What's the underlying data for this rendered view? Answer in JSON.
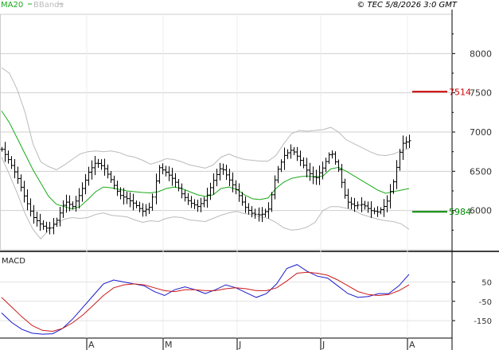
{
  "header": {
    "copyright": "© TEC 5/8/2026 3:0 GMT",
    "legend": [
      {
        "label": "MA20",
        "color": "#1aaa1a"
      },
      {
        "label": "BBands",
        "color": "#bbbbbb"
      }
    ]
  },
  "chart_data": [
    {
      "type": "ohlc",
      "title": "",
      "xlabel": "",
      "ylabel": "",
      "ylim": [
        5500,
        8500
      ],
      "y_ticks": [
        "8000",
        "7500",
        "7000",
        "6500",
        "6000"
      ],
      "x_ticks": [
        "A",
        "M",
        "J",
        "J",
        "A"
      ],
      "grid": true,
      "series": [
        {
          "name": "MA20",
          "color": "#1aaa1a"
        },
        {
          "name": "BBands",
          "color": "#bbbbbb"
        }
      ],
      "levels": [
        {
          "label": "7514",
          "value": 7514,
          "color": "#cc0000"
        },
        {
          "label": "5984",
          "value": 5984,
          "color": "#008800"
        }
      ],
      "price_path": [
        6780,
        6620,
        6420,
        6150,
        5920,
        5820,
        5760,
        5880,
        6120,
        6050,
        6220,
        6480,
        6620,
        6550,
        6380,
        6200,
        6150,
        6080,
        5990,
        6050,
        6550,
        6480,
        6380,
        6200,
        6100,
        6050,
        6150,
        6380,
        6560,
        6400,
        6250,
        6050,
        5960,
        5940,
        6020,
        6480,
        6700,
        6780,
        6650,
        6500,
        6400,
        6550,
        6760,
        6520,
        6120,
        6060,
        6080,
        6000,
        5980,
        6080,
        6380,
        6850,
        6890
      ],
      "ma20_path": [
        7270,
        7120,
        6920,
        6720,
        6520,
        6350,
        6180,
        6080,
        6050,
        6020,
        6050,
        6140,
        6240,
        6300,
        6290,
        6270,
        6250,
        6240,
        6230,
        6225,
        6240,
        6280,
        6300,
        6280,
        6240,
        6200,
        6180,
        6200,
        6280,
        6300,
        6270,
        6200,
        6150,
        6140,
        6160,
        6280,
        6360,
        6410,
        6430,
        6440,
        6430,
        6440,
        6530,
        6550,
        6500,
        6440,
        6380,
        6320,
        6260,
        6220,
        6240,
        6260,
        6280
      ],
      "bb_upper_path": [
        7820,
        7750,
        7540,
        7250,
        6850,
        6620,
        6560,
        6520,
        6580,
        6650,
        6720,
        6750,
        6760,
        6750,
        6760,
        6740,
        6700,
        6680,
        6640,
        6590,
        6620,
        6660,
        6650,
        6620,
        6580,
        6560,
        6540,
        6580,
        6680,
        6720,
        6680,
        6650,
        6640,
        6630,
        6630,
        6700,
        6850,
        6980,
        7020,
        7010,
        7020,
        7030,
        7060,
        7000,
        6900,
        6850,
        6800,
        6750,
        6710,
        6700,
        6720,
        6760,
        6790
      ],
      "bb_lower_path": [
        6680,
        6460,
        6220,
        5960,
        5760,
        5640,
        5750,
        5830,
        5890,
        5910,
        5900,
        5910,
        5950,
        5970,
        5940,
        5930,
        5920,
        5880,
        5850,
        5870,
        5860,
        5900,
        5920,
        5910,
        5880,
        5870,
        5860,
        5900,
        5940,
        5970,
        5990,
        5960,
        5950,
        5920,
        5900,
        5850,
        5780,
        5750,
        5760,
        5790,
        5850,
        6000,
        6050,
        6050,
        6030,
        6000,
        5950,
        5920,
        5890,
        5870,
        5860,
        5830,
        5760
      ]
    },
    {
      "type": "line",
      "title": "MACD",
      "xlabel": "",
      "ylabel": "",
      "ylim": [
        -240,
        200
      ],
      "y_ticks": [
        "50",
        "-50",
        "-150"
      ],
      "grid": true,
      "series": [
        {
          "name": "",
          "color": "#1a1acc",
          "values": [
            -110,
            -160,
            -195,
            -215,
            -220,
            -218,
            -190,
            -140,
            -80,
            -20,
            40,
            60,
            50,
            40,
            30,
            0,
            -20,
            10,
            25,
            10,
            -10,
            10,
            35,
            20,
            -5,
            -30,
            -10,
            40,
            120,
            140,
            105,
            80,
            70,
            30,
            -10,
            -30,
            -25,
            -10,
            -10,
            30,
            90
          ]
        },
        {
          "name": "",
          "color": "#cc1a1a",
          "values": [
            -30,
            -80,
            -130,
            -175,
            -200,
            -205,
            -190,
            -160,
            -120,
            -70,
            -20,
            20,
            35,
            40,
            35,
            20,
            5,
            0,
            10,
            10,
            5,
            5,
            15,
            20,
            15,
            5,
            5,
            20,
            55,
            95,
            100,
            95,
            85,
            60,
            30,
            0,
            -15,
            -20,
            -15,
            5,
            35
          ]
        }
      ]
    }
  ]
}
